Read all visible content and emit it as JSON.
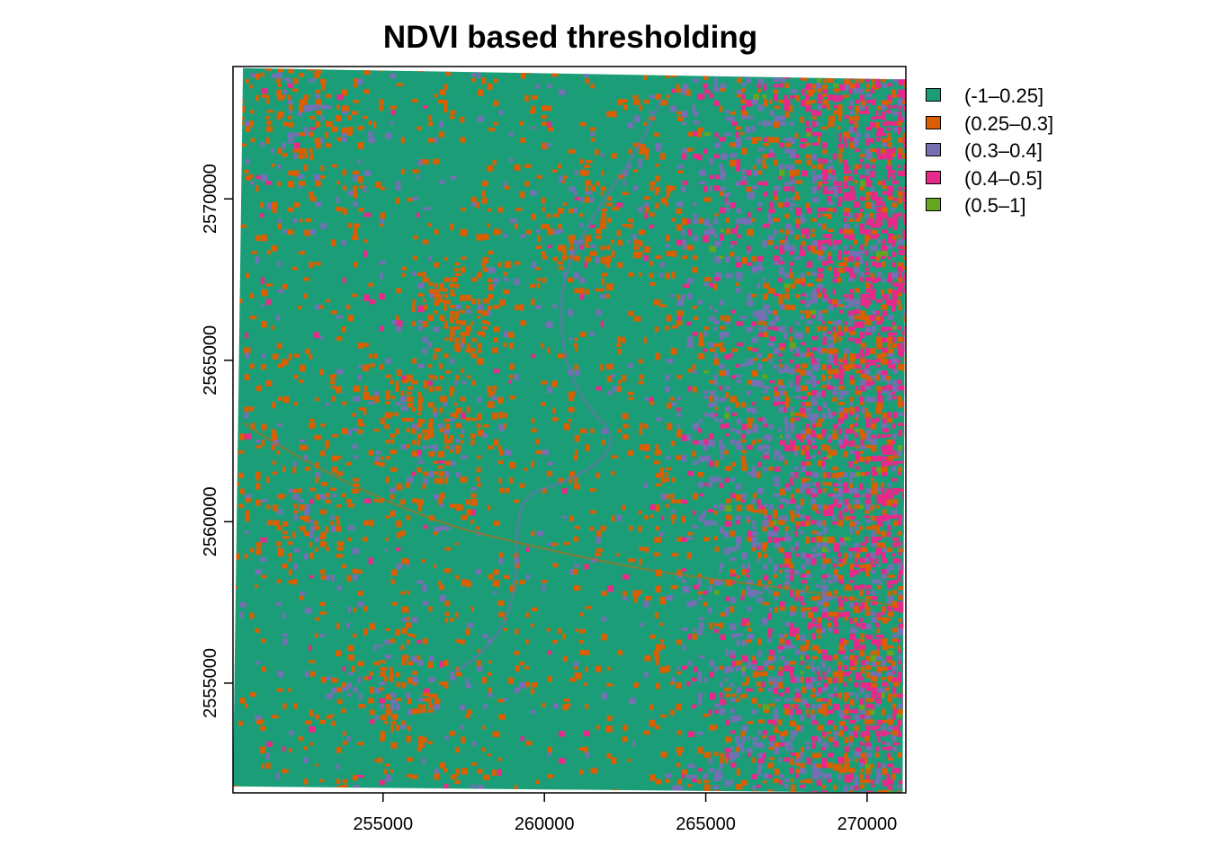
{
  "title": "NDVI based thresholding",
  "chart_data": {
    "type": "heatmap",
    "title": "NDVI based thresholding",
    "subtitle": "",
    "xlabel": "",
    "ylabel": "",
    "xlim": [
      250350,
      271200
    ],
    "ylim": [
      2551600,
      2574100
    ],
    "x_ticks": [
      {
        "value": 255000,
        "label": "255000"
      },
      {
        "value": 260000,
        "label": "260000"
      },
      {
        "value": 265000,
        "label": "265000"
      },
      {
        "value": 270000,
        "label": "270000"
      }
    ],
    "y_ticks": [
      {
        "value": 2555000,
        "label": "2555000"
      },
      {
        "value": 2560000,
        "label": "2560000"
      },
      {
        "value": 2565000,
        "label": "2565000"
      },
      {
        "value": 2570000,
        "label": "2570000"
      }
    ],
    "raster_extent": {
      "corners": [
        {
          "corner": "top-left",
          "x": 250660,
          "y": 2574050
        },
        {
          "corner": "top-right",
          "x": 271200,
          "y": 2573700
        },
        {
          "corner": "bottom-right",
          "x": 271100,
          "y": 2551600
        },
        {
          "corner": "bottom-left",
          "x": 250350,
          "y": 2551800
        }
      ]
    },
    "classes": [
      {
        "label": "(-1–0.25]",
        "color": "#1B9E77",
        "min": -1,
        "max": 0.25
      },
      {
        "label": "(0.25–0.3]",
        "color": "#D95F02",
        "min": 0.25,
        "max": 0.3
      },
      {
        "label": "(0.3–0.4]",
        "color": "#7570B3",
        "min": 0.3,
        "max": 0.4
      },
      {
        "label": "(0.4–0.5]",
        "color": "#E7298A",
        "min": 0.4,
        "max": 0.5
      },
      {
        "label": "(0.5–1]",
        "color": "#66A61E",
        "min": 0.5,
        "max": 1
      }
    ],
    "background_class": "(-1–0.25]",
    "legend_position": "right",
    "grid": false
  }
}
